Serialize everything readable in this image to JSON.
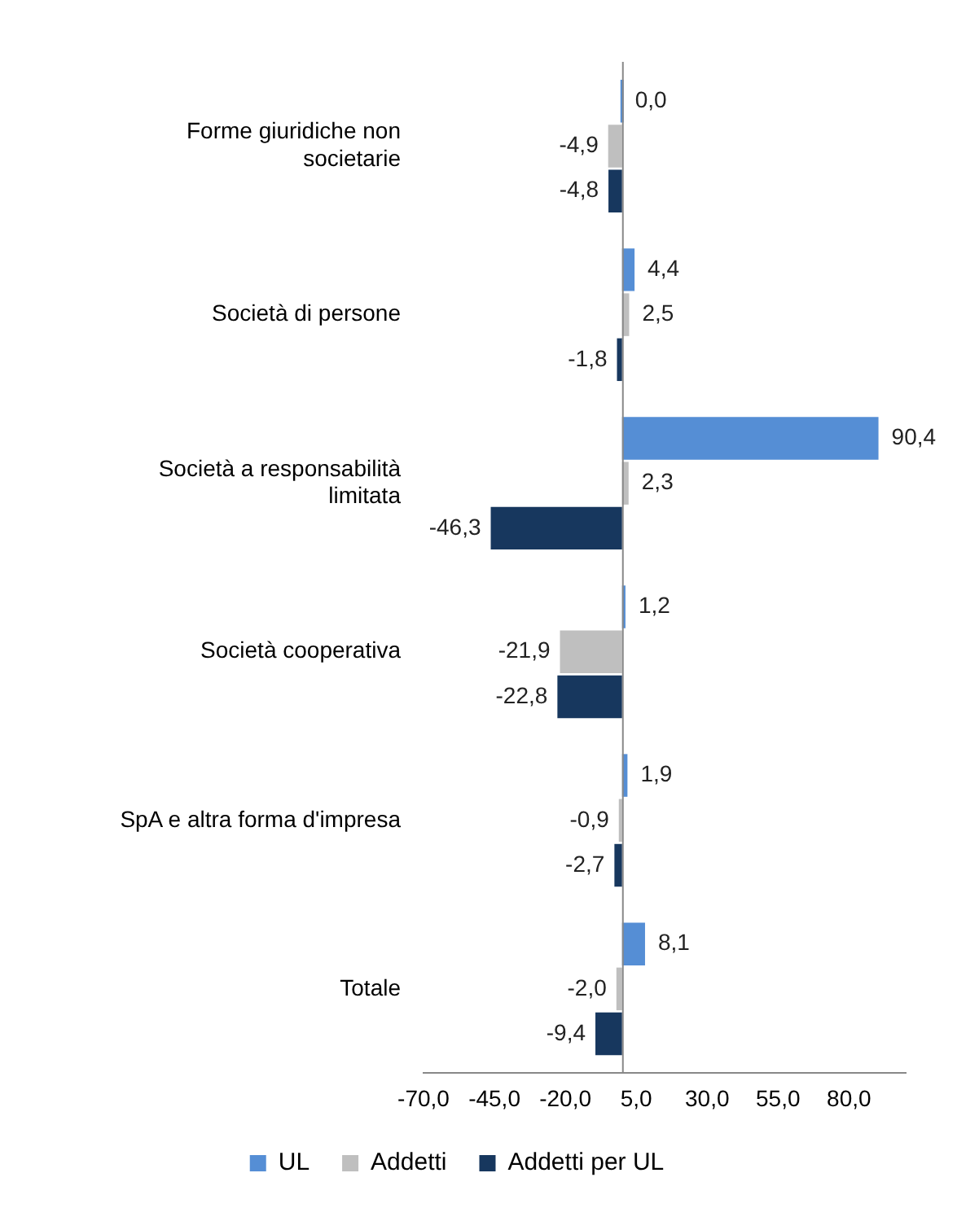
{
  "chart_data": {
    "type": "bar",
    "orientation": "horizontal",
    "categories": [
      "Forme giuridiche non societarie",
      "Società di persone",
      "Società a responsabilità limitata",
      "Società cooperativa",
      "SpA e altra forma d'impresa",
      "Totale"
    ],
    "series": [
      {
        "name": "UL",
        "color": "#558ed5",
        "values": [
          0.0,
          4.4,
          90.4,
          1.2,
          1.9,
          8.1
        ],
        "value_labels": [
          "0,0",
          "4,4",
          "90,4",
          "1,2",
          "1,9",
          "8,1"
        ]
      },
      {
        "name": "Addetti",
        "color": "#bfbfbf",
        "values": [
          -4.9,
          2.5,
          2.3,
          -21.9,
          -0.9,
          -2.0
        ],
        "value_labels": [
          "-4,9",
          "2,5",
          "2,3",
          "-21,9",
          "-0,9",
          "-2,0"
        ]
      },
      {
        "name": "Addetti per UL",
        "color": "#17375e",
        "values": [
          -4.8,
          -1.8,
          -46.3,
          -22.8,
          -2.7,
          -9.4
        ],
        "value_labels": [
          "-4,8",
          "-1,8",
          "-46,3",
          "-22,8",
          "-2,7",
          "-9,4"
        ]
      }
    ],
    "xlim": [
      -70,
      100
    ],
    "xticks": [
      {
        "value": -70,
        "label": "-70,0"
      },
      {
        "value": -45,
        "label": "-45,0"
      },
      {
        "value": -20,
        "label": "-20,0"
      },
      {
        "value": 5,
        "label": "5,0"
      },
      {
        "value": 30,
        "label": "30,0"
      },
      {
        "value": 55,
        "label": "55,0"
      },
      {
        "value": 80,
        "label": "80,0"
      }
    ],
    "grid": false,
    "legend": "bottom"
  }
}
